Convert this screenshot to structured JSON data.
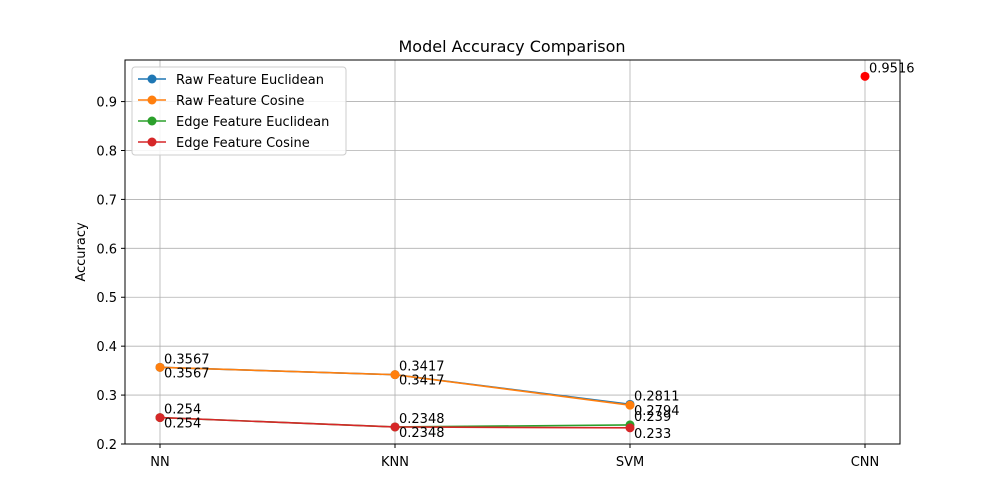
{
  "chart_data": {
    "type": "line",
    "title": "Model Accuracy Comparison",
    "xlabel": "",
    "ylabel": "Accuracy",
    "categories": [
      "NN",
      "KNN",
      "SVM",
      "CNN"
    ],
    "ylim": [
      0.2,
      0.985
    ],
    "yticks": [
      "0.2",
      "0.3",
      "0.4",
      "0.5",
      "0.6",
      "0.7",
      "0.8",
      "0.9"
    ],
    "grid": true,
    "legend_position": "top-left",
    "series": [
      {
        "name": "Raw Feature Euclidean",
        "color": "#1f77b4",
        "values": [
          0.3567,
          0.3417,
          0.2811,
          null
        ]
      },
      {
        "name": "Raw Feature Cosine",
        "color": "#ff7f0e",
        "values": [
          0.3567,
          0.3417,
          0.2794,
          null
        ]
      },
      {
        "name": "Edge Feature Euclidean",
        "color": "#2ca02c",
        "values": [
          0.254,
          0.2348,
          0.239,
          null
        ]
      },
      {
        "name": "Edge Feature Cosine",
        "color": "#d62728",
        "values": [
          0.254,
          0.2348,
          0.233,
          null
        ]
      }
    ],
    "extra_points": [
      {
        "category": "CNN",
        "value": 0.9516,
        "color": "#ff0000"
      }
    ],
    "data_labels": [
      {
        "category": "NN",
        "value": 0.3567,
        "text": "0.3567",
        "pos": "above"
      },
      {
        "category": "NN",
        "value": 0.3567,
        "text": "0.3567",
        "pos": "below"
      },
      {
        "category": "KNN",
        "value": 0.3417,
        "text": "0.3417",
        "pos": "above"
      },
      {
        "category": "KNN",
        "value": 0.3417,
        "text": "0.3417",
        "pos": "below"
      },
      {
        "category": "SVM",
        "value": 0.2811,
        "text": "0.2811",
        "pos": "above"
      },
      {
        "category": "SVM",
        "value": 0.2794,
        "text": "0.2794",
        "pos": "below"
      },
      {
        "category": "NN",
        "value": 0.254,
        "text": "0.254",
        "pos": "above"
      },
      {
        "category": "NN",
        "value": 0.254,
        "text": "0.254",
        "pos": "below"
      },
      {
        "category": "KNN",
        "value": 0.2348,
        "text": "0.2348",
        "pos": "above"
      },
      {
        "category": "KNN",
        "value": 0.2348,
        "text": "0.2348",
        "pos": "below"
      },
      {
        "category": "SVM",
        "value": 0.239,
        "text": "0.239",
        "pos": "above"
      },
      {
        "category": "SVM",
        "value": 0.233,
        "text": "0.233",
        "pos": "below"
      },
      {
        "category": "CNN",
        "value": 0.9516,
        "text": "0.9516",
        "pos": "above"
      }
    ]
  }
}
